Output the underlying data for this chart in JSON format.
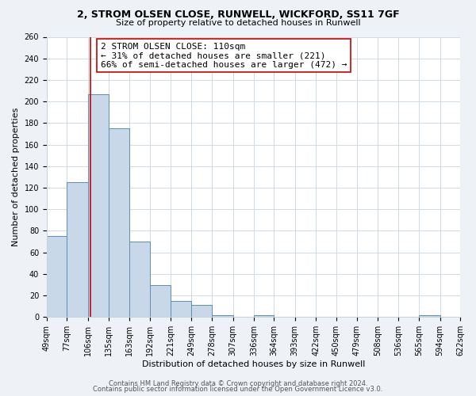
{
  "title": "2, STROM OLSEN CLOSE, RUNWELL, WICKFORD, SS11 7GF",
  "subtitle": "Size of property relative to detached houses in Runwell",
  "xlabel": "Distribution of detached houses by size in Runwell",
  "ylabel": "Number of detached properties",
  "bins": [
    49,
    77,
    106,
    135,
    163,
    192,
    221,
    249,
    278,
    307,
    336,
    364,
    393,
    422,
    450,
    479,
    508,
    536,
    565,
    594,
    622
  ],
  "bin_labels": [
    "49sqm",
    "77sqm",
    "106sqm",
    "135sqm",
    "163sqm",
    "192sqm",
    "221sqm",
    "249sqm",
    "278sqm",
    "307sqm",
    "336sqm",
    "364sqm",
    "393sqm",
    "422sqm",
    "450sqm",
    "479sqm",
    "508sqm",
    "536sqm",
    "565sqm",
    "594sqm",
    "622sqm"
  ],
  "values": [
    75,
    125,
    207,
    175,
    70,
    30,
    15,
    11,
    2,
    0,
    2,
    0,
    0,
    0,
    0,
    0,
    0,
    0,
    2,
    0,
    0
  ],
  "bar_color": "#c8d8e8",
  "bar_edge_color": "#5b8db8",
  "reference_line_x": 110,
  "reference_line_color": "#cc0000",
  "ylim": [
    0,
    260
  ],
  "yticks": [
    0,
    20,
    40,
    60,
    80,
    100,
    120,
    140,
    160,
    180,
    200,
    220,
    240,
    260
  ],
  "annotation_line1": "2 STROM OLSEN CLOSE: 110sqm",
  "annotation_line2": "← 31% of detached houses are smaller (221)",
  "annotation_line3": "66% of semi-detached houses are larger (472) →",
  "annotation_box_color": "#ffffff",
  "annotation_box_edge": "#cc0000",
  "footer_line1": "Contains HM Land Registry data © Crown copyright and database right 2024.",
  "footer_line2": "Contains public sector information licensed under the Open Government Licence v3.0.",
  "bg_color": "#eef2f7",
  "plot_bg_color": "#ffffff",
  "grid_color": "#c8d4e0",
  "title_fontsize": 9,
  "subtitle_fontsize": 8,
  "axis_label_fontsize": 8,
  "tick_fontsize": 7,
  "annotation_fontsize": 8,
  "footer_fontsize": 6
}
